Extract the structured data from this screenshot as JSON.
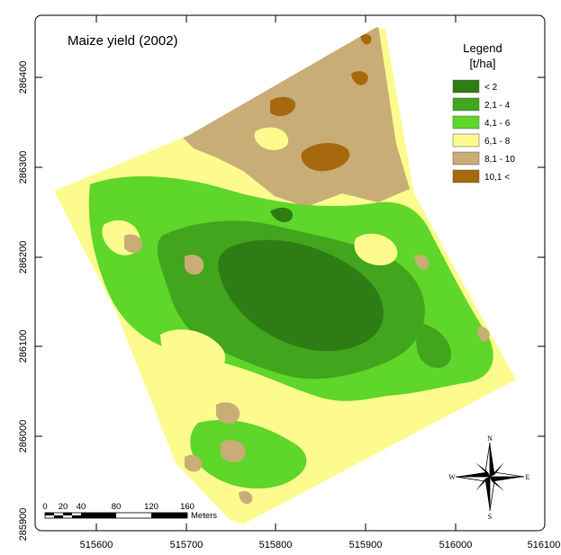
{
  "map": {
    "title": "Maize yield (2002)",
    "legend": {
      "title": "Legend",
      "unit": "[t/ha]",
      "classes": [
        {
          "label": "< 2",
          "color": "#2e7d14"
        },
        {
          "label": "2,1 - 4",
          "color": "#41a51e"
        },
        {
          "label": "4,1 - 6",
          "color": "#5fd62a"
        },
        {
          "label": "6,1 - 8",
          "color": "#fdfb8d"
        },
        {
          "label": "8,1 - 10",
          "color": "#c9ad76"
        },
        {
          "label": "10,1 <",
          "color": "#a7690e"
        }
      ]
    },
    "x_axis": {
      "ticks": [
        "515600",
        "515700",
        "515800",
        "515900",
        "516000",
        "516100"
      ]
    },
    "y_axis": {
      "ticks": [
        "286400",
        "286300",
        "286200",
        "286100",
        "286000",
        "285900"
      ]
    },
    "scale_bar": {
      "ticks": [
        "0",
        "20",
        "40",
        "80",
        "120",
        "160"
      ],
      "unit": "Meters"
    },
    "north_arrow": {
      "n": "N",
      "s": "S",
      "e": "E",
      "w": "W"
    }
  }
}
